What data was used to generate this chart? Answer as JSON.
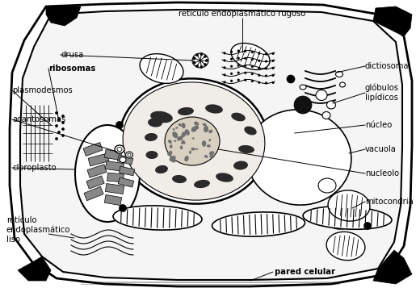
{
  "fig_width": 5.15,
  "fig_height": 3.57,
  "dpi": 100,
  "bg_color": "#ffffff",
  "line_color": "#000000",
  "labels": {
    "reticulo_rugoso": "retículo endoplasmático rugoso",
    "dictiosoma": "dictiosoma",
    "globulos": "glóbulos\nlipídicos",
    "nucleo": "núcleo",
    "vacuola": "vacuola",
    "nucleolo": "nucleolo",
    "mitocondria": "mitocondria",
    "cloroplasto": "cloroplasto",
    "reticulo_liso": "retículo\nendoplasmático\nliso",
    "pared_celular": "pared celular",
    "acantosomas": "acantosomas",
    "plasmodesmos": "plasmodesmos",
    "ribosomas": "ribosomas",
    "drusa": "drusa"
  }
}
